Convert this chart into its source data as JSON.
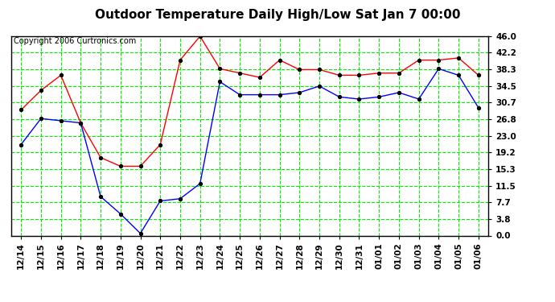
{
  "title": "Outdoor Temperature Daily High/Low Sat Jan 7 00:00",
  "copyright": "Copyright 2006 Curtronics.com",
  "background_color": "#ffffff",
  "plot_bg_color": "#ffffff",
  "grid_color": "#00ee00",
  "vert_grid_color": "#008800",
  "labels": [
    "12/14",
    "12/15",
    "12/16",
    "12/17",
    "12/18",
    "12/19",
    "12/20",
    "12/21",
    "12/22",
    "12/23",
    "12/24",
    "12/25",
    "12/26",
    "12/27",
    "12/28",
    "12/29",
    "12/30",
    "12/31",
    "01/01",
    "01/02",
    "01/03",
    "01/04",
    "01/05",
    "01/06"
  ],
  "high_values": [
    29.0,
    33.5,
    37.0,
    26.0,
    18.0,
    16.0,
    16.0,
    21.0,
    40.5,
    46.0,
    38.5,
    37.5,
    36.5,
    40.5,
    38.3,
    38.3,
    37.0,
    37.0,
    37.5,
    37.5,
    40.5,
    40.5,
    41.0,
    37.0
  ],
  "low_values": [
    21.0,
    27.0,
    26.5,
    26.0,
    9.0,
    5.0,
    0.5,
    8.0,
    8.5,
    12.0,
    35.5,
    32.5,
    32.5,
    32.5,
    33.0,
    34.5,
    32.0,
    31.5,
    32.0,
    33.0,
    31.5,
    38.5,
    37.0,
    29.5
  ],
  "high_color": "#ff0000",
  "low_color": "#0000ff",
  "marker": "+",
  "marker_size": 5,
  "ylim": [
    0.0,
    46.0
  ],
  "yticks": [
    0.0,
    3.8,
    7.7,
    11.5,
    15.3,
    19.2,
    23.0,
    26.8,
    30.7,
    34.5,
    38.3,
    42.2,
    46.0
  ],
  "title_fontsize": 11,
  "axis_fontsize": 7.5,
  "copyright_fontsize": 7
}
